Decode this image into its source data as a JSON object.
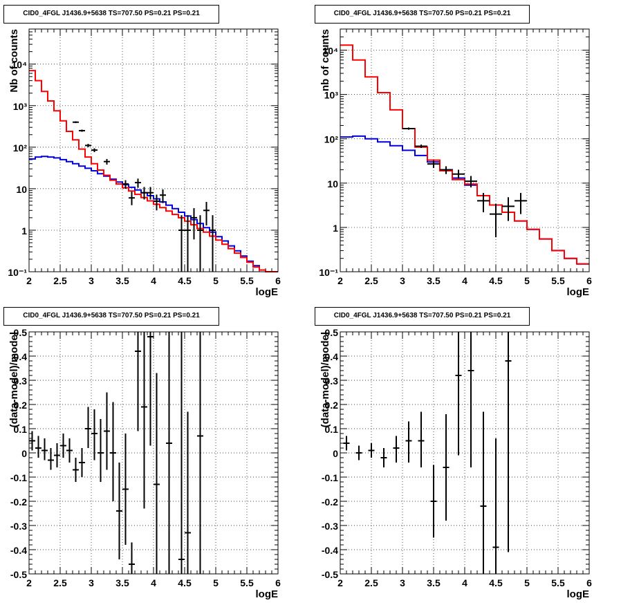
{
  "panels": [
    {
      "title": "CID0_4FGL J1436.9+5638 TS=707.50 PS=0.21 PS=0.21"
    },
    {
      "title": "CID0_4FGL J1436.9+5638 TS=707.50 PS=0.21 PS=0.21"
    },
    {
      "title": "CID0_4FGL J1436.9+5638 TS=707.50 PS=0.21 PS=0.21"
    },
    {
      "title": "CID0_4FGL J1436.9+5638 TS=707.50 PS=0.21 PS=0.21"
    }
  ],
  "colors": {
    "total_model": "#ff0000",
    "background_model": "#0000dd",
    "data": "#000000"
  },
  "chart_data": [
    {
      "type": "line",
      "title": "CID0_4FGL J1436.9+5638 TS=707.50 PS=0.21 PS=0.21",
      "xlabel": "logE",
      "ylabel": "Nb of counts",
      "xlim": [
        2,
        6
      ],
      "ylim": [
        0.1,
        70000
      ],
      "yscale": "log",
      "grid": true,
      "xticks": [
        "2",
        "2.5",
        "3",
        "3.5",
        "4",
        "4.5",
        "5",
        "5.5",
        "6"
      ],
      "yticks": [
        "10⁻¹",
        "1",
        "10",
        "10²",
        "10³",
        "10⁴"
      ],
      "bin_edges": [
        2.0,
        2.1,
        2.2,
        2.3,
        2.4,
        2.5,
        2.6,
        2.7,
        2.8,
        2.9,
        3.0,
        3.1,
        3.2,
        3.3,
        3.4,
        3.5,
        3.6,
        3.7,
        3.8,
        3.9,
        4.0,
        4.1,
        4.2,
        4.3,
        4.4,
        4.5,
        4.6,
        4.7,
        4.8,
        4.9,
        5.0,
        5.1,
        5.2,
        5.3,
        5.4,
        5.5,
        5.6,
        5.7,
        5.8,
        5.9,
        6.0
      ],
      "series": [
        {
          "values": [
            7000,
            4000,
            2200,
            1300,
            750,
            430,
            240,
            150,
            90,
            58,
            40,
            28,
            21,
            16,
            13,
            10.5,
            8.8,
            7.3,
            6.1,
            5.1,
            4.2,
            3.5,
            2.9,
            2.4,
            2.0,
            1.65,
            1.35,
            1.1,
            0.9,
            0.72,
            0.58,
            0.46,
            0.36,
            0.28,
            0.22,
            0.17,
            0.13,
            0.11,
            0.1,
            0.1
          ]
        },
        {
          "values": [
            52,
            58,
            60,
            58,
            55,
            50,
            45,
            40,
            35,
            31,
            27,
            23,
            20,
            17,
            14.5,
            12.5,
            10.8,
            9.3,
            8.0,
            6.8,
            5.7,
            4.8,
            4.0,
            3.3,
            2.7,
            2.2,
            1.8,
            1.45,
            1.15,
            0.9,
            0.7,
            0.55,
            0.42,
            0.32,
            0.24,
            0.18,
            0.14,
            0.11,
            0.1,
            0.1
          ]
        }
      ],
      "points": [
        {
          "x": 2.75,
          "y": 400,
          "lo": 380,
          "hi": 420
        },
        {
          "x": 2.85,
          "y": 250,
          "lo": 235,
          "hi": 265
        },
        {
          "x": 2.95,
          "y": 110,
          "lo": 100,
          "hi": 120
        },
        {
          "x": 3.05,
          "y": 85,
          "lo": 76,
          "hi": 94
        },
        {
          "x": 3.25,
          "y": 45,
          "lo": 38,
          "hi": 52
        },
        {
          "x": 3.55,
          "y": 13,
          "lo": 10,
          "hi": 16
        },
        {
          "x": 3.65,
          "y": 6,
          "lo": 4,
          "hi": 8.5
        },
        {
          "x": 3.75,
          "y": 14,
          "lo": 10.5,
          "hi": 17.5
        },
        {
          "x": 3.85,
          "y": 8,
          "lo": 5.5,
          "hi": 11
        },
        {
          "x": 3.95,
          "y": 8,
          "lo": 5.5,
          "hi": 11
        },
        {
          "x": 4.05,
          "y": 5,
          "lo": 3,
          "hi": 7.2
        },
        {
          "x": 4.15,
          "y": 7,
          "lo": 4.5,
          "hi": 9.6
        },
        {
          "x": 4.45,
          "y": 1,
          "lo": 0.1,
          "hi": 2.3
        },
        {
          "x": 4.55,
          "y": 1,
          "lo": 0.1,
          "hi": 2.3
        },
        {
          "x": 4.65,
          "y": 2,
          "lo": 0.6,
          "hi": 3.4
        },
        {
          "x": 4.75,
          "y": 1,
          "lo": 0.1,
          "hi": 2.3
        },
        {
          "x": 4.85,
          "y": 3,
          "lo": 1.3,
          "hi": 4.8
        },
        {
          "x": 4.95,
          "y": 1,
          "lo": 0.1,
          "hi": 2.3
        }
      ]
    },
    {
      "type": "line",
      "title": "CID0_4FGL J1436.9+5638 TS=707.50 PS=0.21 PS=0.21",
      "xlabel": "logE",
      "ylabel": "nb of counts",
      "xlim": [
        2,
        6
      ],
      "ylim": [
        0.1,
        30000
      ],
      "yscale": "log",
      "grid": true,
      "xticks": [
        "2",
        "2.5",
        "3",
        "3.5",
        "4",
        "4.5",
        "5",
        "5.5",
        "6"
      ],
      "yticks": [
        "10⁻¹",
        "1",
        "10",
        "10²",
        "10³",
        "10⁴"
      ],
      "bin_edges": [
        2.0,
        2.2,
        2.4,
        2.6,
        2.8,
        3.0,
        3.2,
        3.4,
        3.6,
        3.8,
        4.0,
        4.2,
        4.4,
        4.6,
        4.8,
        5.0,
        5.2,
        5.4,
        5.6,
        5.8,
        6.0
      ],
      "series": [
        {
          "values": [
            13000,
            6000,
            2500,
            1100,
            450,
            170,
            65,
            33,
            19,
            12,
            9.5,
            5.2,
            3.2,
            2.2,
            1.4,
            0.9,
            0.55,
            0.3,
            0.2,
            0.15
          ]
        },
        {
          "values": [
            110,
            115,
            100,
            85,
            70,
            55,
            42,
            30,
            20,
            13,
            9.0,
            5.2,
            3.2,
            2.2,
            1.4,
            0.9,
            0.55,
            0.3,
            0.2,
            0.15
          ]
        }
      ],
      "points": [
        {
          "x": 3.1,
          "y": 170,
          "lo": 160,
          "hi": 180
        },
        {
          "x": 3.3,
          "y": 68,
          "lo": 62,
          "hi": 74
        },
        {
          "x": 3.5,
          "y": 27,
          "lo": 22,
          "hi": 32
        },
        {
          "x": 3.7,
          "y": 20,
          "lo": 16,
          "hi": 24
        },
        {
          "x": 3.9,
          "y": 16,
          "lo": 12.5,
          "hi": 20
        },
        {
          "x": 4.1,
          "y": 11,
          "lo": 8,
          "hi": 14.5
        },
        {
          "x": 4.3,
          "y": 4,
          "lo": 2.2,
          "hi": 6
        },
        {
          "x": 4.5,
          "y": 2,
          "lo": 0.6,
          "hi": 3.4
        },
        {
          "x": 4.7,
          "y": 3,
          "lo": 1.4,
          "hi": 4.8
        },
        {
          "x": 4.9,
          "y": 4,
          "lo": 2,
          "hi": 6
        }
      ]
    },
    {
      "type": "scatter",
      "title": "CID0_4FGL J1436.9+5638 TS=707.50 PS=0.21 PS=0.21",
      "xlabel": "logE",
      "ylabel": "(data-model)/model",
      "xlim": [
        2,
        6
      ],
      "ylim": [
        -0.5,
        0.5
      ],
      "grid": true,
      "xticks": [
        "2",
        "2.5",
        "3",
        "3.5",
        "4",
        "4.5",
        "5",
        "5.5",
        "6"
      ],
      "yticks": [
        "-0.5",
        "-0.4",
        "-0.3",
        "-0.2",
        "-0.1",
        "0",
        "0.1",
        "0.2",
        "0.3",
        "0.4",
        "0.5"
      ],
      "points": [
        {
          "x": 2.05,
          "y": 0.05,
          "lo": 0.01,
          "hi": 0.09
        },
        {
          "x": 2.15,
          "y": 0.02,
          "lo": -0.02,
          "hi": 0.07
        },
        {
          "x": 2.25,
          "y": 0.01,
          "lo": -0.03,
          "hi": 0.06
        },
        {
          "x": 2.35,
          "y": -0.03,
          "lo": -0.07,
          "hi": 0.02
        },
        {
          "x": 2.45,
          "y": -0.01,
          "lo": -0.06,
          "hi": 0.04
        },
        {
          "x": 2.55,
          "y": 0.03,
          "lo": -0.02,
          "hi": 0.08
        },
        {
          "x": 2.65,
          "y": 0.01,
          "lo": -0.04,
          "hi": 0.06
        },
        {
          "x": 2.75,
          "y": -0.07,
          "lo": -0.12,
          "hi": -0.02
        },
        {
          "x": 2.85,
          "y": -0.04,
          "lo": -0.1,
          "hi": 0.02
        },
        {
          "x": 2.95,
          "y": 0.1,
          "lo": 0.02,
          "hi": 0.19
        },
        {
          "x": 3.05,
          "y": 0.08,
          "lo": -0.03,
          "hi": 0.18
        },
        {
          "x": 3.15,
          "y": 0.0,
          "lo": -0.12,
          "hi": 0.14
        },
        {
          "x": 3.25,
          "y": 0.09,
          "lo": -0.07,
          "hi": 0.25
        },
        {
          "x": 3.35,
          "y": 0.0,
          "lo": -0.2,
          "hi": 0.21
        },
        {
          "x": 3.45,
          "y": -0.24,
          "lo": -0.44,
          "hi": -0.04
        },
        {
          "x": 3.55,
          "y": -0.15,
          "lo": -0.38,
          "hi": 0.08
        },
        {
          "x": 3.65,
          "y": -0.46,
          "lo": -0.5,
          "hi": -0.37
        },
        {
          "x": 3.75,
          "y": 0.42,
          "lo": 0.09,
          "hi": 0.5
        },
        {
          "x": 3.85,
          "y": 0.19,
          "lo": -0.23,
          "hi": 0.5
        },
        {
          "x": 3.95,
          "y": 0.48,
          "lo": 0.03,
          "hi": 0.5
        },
        {
          "x": 4.05,
          "y": -0.13,
          "lo": -0.5,
          "hi": 0.33
        },
        {
          "x": 4.25,
          "y": 0.04,
          "lo": -0.5,
          "hi": 0.5
        },
        {
          "x": 4.45,
          "y": -0.44,
          "lo": -0.5,
          "hi": 0.5
        },
        {
          "x": 4.55,
          "y": -0.33,
          "lo": -0.5,
          "hi": 0.17
        },
        {
          "x": 4.75,
          "y": 0.07,
          "lo": -0.5,
          "hi": 0.5
        }
      ]
    },
    {
      "type": "scatter",
      "title": "CID0_4FGL J1436.9+5638 TS=707.50 PS=0.21 PS=0.21",
      "xlabel": "logE",
      "ylabel": "(data-model)/model",
      "xlim": [
        2,
        6
      ],
      "ylim": [
        -0.5,
        0.5
      ],
      "grid": true,
      "xticks": [
        "2",
        "2.5",
        "3",
        "3.5",
        "4",
        "4.5",
        "5",
        "5.5",
        "6"
      ],
      "yticks": [
        "-0.5",
        "-0.4",
        "-0.3",
        "-0.2",
        "-0.1",
        "0",
        "0.1",
        "0.2",
        "0.3",
        "0.4",
        "0.5"
      ],
      "points": [
        {
          "x": 2.1,
          "y": 0.04,
          "lo": 0.01,
          "hi": 0.07
        },
        {
          "x": 2.3,
          "y": 0.0,
          "lo": -0.03,
          "hi": 0.03
        },
        {
          "x": 2.5,
          "y": 0.01,
          "lo": -0.02,
          "hi": 0.04
        },
        {
          "x": 2.7,
          "y": -0.02,
          "lo": -0.06,
          "hi": 0.02
        },
        {
          "x": 2.9,
          "y": 0.02,
          "lo": -0.04,
          "hi": 0.07
        },
        {
          "x": 3.1,
          "y": 0.05,
          "lo": -0.04,
          "hi": 0.13
        },
        {
          "x": 3.3,
          "y": 0.05,
          "lo": -0.06,
          "hi": 0.17
        },
        {
          "x": 3.5,
          "y": -0.2,
          "lo": -0.35,
          "hi": -0.05
        },
        {
          "x": 3.7,
          "y": -0.06,
          "lo": -0.28,
          "hi": 0.16
        },
        {
          "x": 3.9,
          "y": 0.32,
          "lo": -0.01,
          "hi": 0.5
        },
        {
          "x": 4.1,
          "y": 0.34,
          "lo": -0.06,
          "hi": 0.5
        },
        {
          "x": 4.3,
          "y": -0.22,
          "lo": -0.5,
          "hi": 0.17
        },
        {
          "x": 4.5,
          "y": -0.39,
          "lo": -0.5,
          "hi": 0.06
        },
        {
          "x": 4.7,
          "y": 0.38,
          "lo": -0.41,
          "hi": 0.5
        }
      ]
    }
  ]
}
